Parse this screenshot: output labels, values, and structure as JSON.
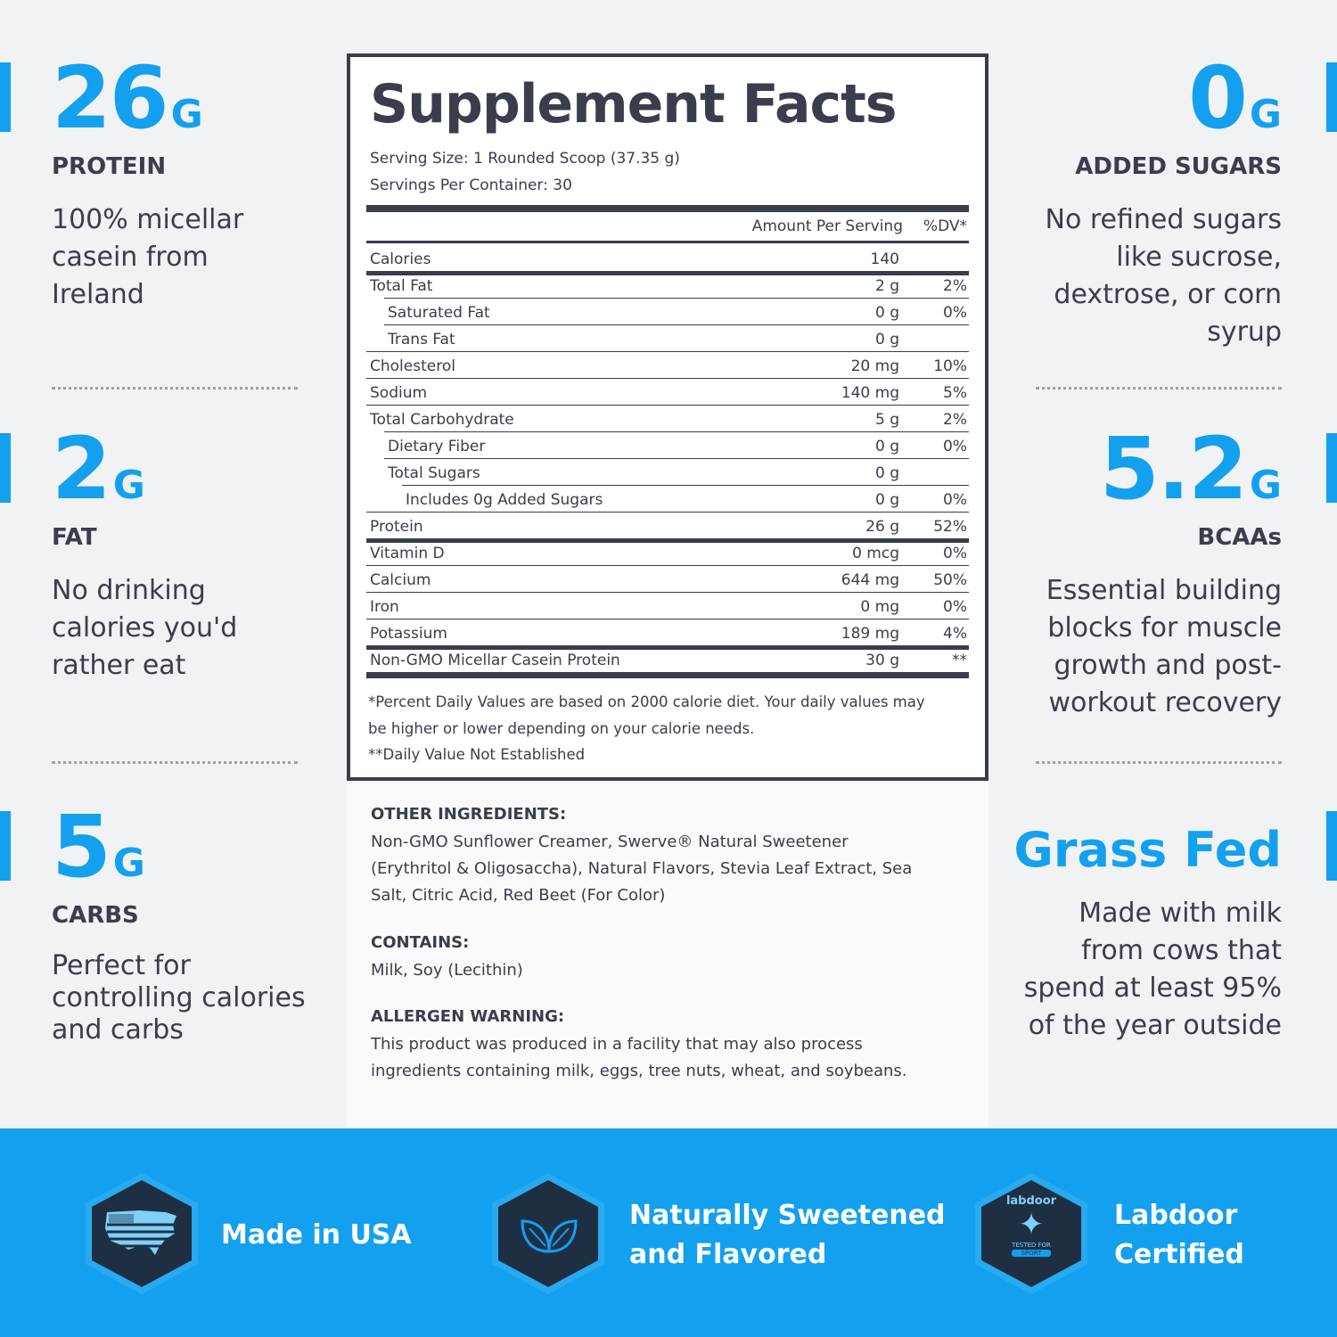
{
  "left_stats": [
    {
      "value": "26",
      "unit": "G",
      "label": "PROTEIN",
      "desc": [
        "100% micellar",
        "casein from",
        "Ireland"
      ]
    },
    {
      "value": "2",
      "unit": "G",
      "label": "FAT",
      "desc": [
        "No drinking",
        "calories you'd",
        "rather eat"
      ]
    },
    {
      "value": "5",
      "unit": "G",
      "label": "CARBS",
      "desc": [
        "Perfect for",
        "controlling calories",
        "and carbs"
      ]
    }
  ],
  "right_stats": [
    {
      "value": "0",
      "unit": "G",
      "label": "ADDED SUGARS",
      "desc": [
        "No refined sugars",
        "like sucrose,",
        "dextrose, or corn",
        "syrup"
      ]
    },
    {
      "value": "5.2",
      "unit": "G",
      "label": "BCAAs",
      "desc": [
        "Essential building",
        "blocks for muscle",
        "growth and post-",
        "workout recovery"
      ]
    },
    {
      "title": "Grass Fed",
      "desc": [
        "Made with milk",
        "from cows that",
        "spend at least 95%",
        "of the year outside"
      ]
    }
  ],
  "facts": {
    "title": "Supplement Facts",
    "serving_size": "Serving Size: 1 Rounded Scoop (37.35 g)",
    "servings_per": "Servings Per Container: 30",
    "col_amount": "Amount Per Serving",
    "col_dv": "%DV*",
    "rows": [
      {
        "name": "Calories",
        "amount": "140",
        "dv": ""
      },
      {
        "name": "Total Fat",
        "amount": "2 g",
        "dv": "2%"
      },
      {
        "name": "Saturated Fat",
        "amount": "0 g",
        "dv": "0%"
      },
      {
        "name": "Trans Fat",
        "amount": "0 g",
        "dv": ""
      },
      {
        "name": "Cholesterol",
        "amount": "20 mg",
        "dv": "10%"
      },
      {
        "name": "Sodium",
        "amount": "140 mg",
        "dv": "5%"
      },
      {
        "name": "Total Carbohydrate",
        "amount": "5 g",
        "dv": "2%"
      },
      {
        "name": "Dietary Fiber",
        "amount": "0 g",
        "dv": "0%"
      },
      {
        "name": "Total Sugars",
        "amount": "0 g",
        "dv": ""
      },
      {
        "name": "Includes 0g Added Sugars",
        "amount": "0 g",
        "dv": "0%"
      },
      {
        "name": "Protein",
        "amount": "26 g",
        "dv": "52%"
      },
      {
        "name": "Vitamin D",
        "amount": "0 mcg",
        "dv": "0%"
      },
      {
        "name": "Calcium",
        "amount": "644 mg",
        "dv": "50%"
      },
      {
        "name": "Iron",
        "amount": "0 mg",
        "dv": "0%"
      },
      {
        "name": "Potassium",
        "amount": "189 mg",
        "dv": "4%"
      },
      {
        "name": "Non-GMO Micellar Casein Protein",
        "amount": "30 g",
        "dv": "**"
      }
    ],
    "footnote1": "*Percent Daily Values are based on 2000 calorie diet. Your daily values may",
    "footnote2": "be higher or lower depending on your calorie needs.",
    "footnote3": "**Daily Value Not Established"
  },
  "ingredients": {
    "other_h": "OTHER INGREDIENTS:",
    "other_l1": "Non-GMO Sunflower Creamer, Swerve® Natural Sweetener",
    "other_l2": "(Erythritol & Oligosaccha), Natural Flavors, Stevia Leaf Extract, Sea",
    "other_l3": "Salt, Citric Acid, Red Beet (For Color)",
    "contains_h": "CONTAINS:",
    "contains": "Milk, Soy (Lecithin)",
    "allergen_h": "ALLERGEN WARNING:",
    "allergen_l1": "This product was produced in a facility that may also process",
    "allergen_l2": "ingredients containing milk, eggs, tree nuts, wheat, and soybeans."
  },
  "badges": [
    {
      "icon": "usa-flag-map-icon",
      "lines": [
        "Made in USA"
      ]
    },
    {
      "icon": "leaf-icon",
      "lines": [
        "Naturally Sweetened",
        "and Flavored"
      ]
    },
    {
      "icon": "labdoor-logo-icon",
      "logo_text": "labdoor",
      "logo_sub1": "TESTED FOR",
      "logo_sub2": "SPORT",
      "lines": [
        "Labdoor",
        "Certified"
      ]
    }
  ],
  "colors": {
    "accent": "#13a0ef",
    "text": "#3a3d4c",
    "hex": "#1e2f43"
  }
}
